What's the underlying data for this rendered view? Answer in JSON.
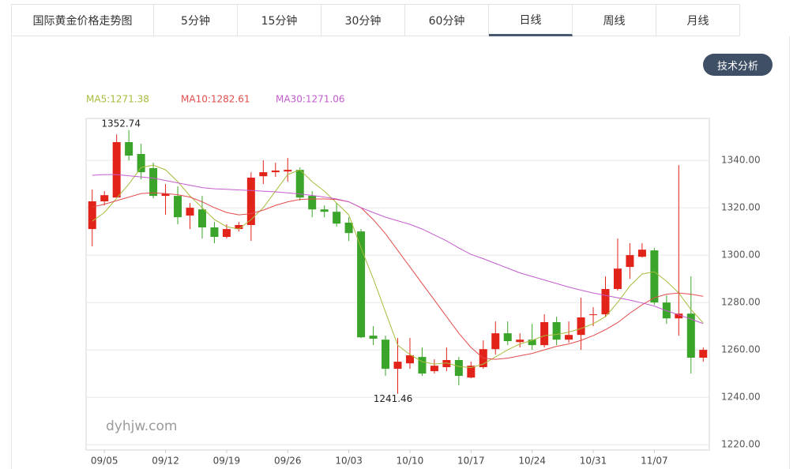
{
  "tabs": [
    "国际黄金价格走势图",
    "5分钟",
    "15分钟",
    "30分钟",
    "60分钟",
    "日线",
    "周线",
    "月线"
  ],
  "active_tab": "日线",
  "button": "技术分析",
  "watermark": "dyhjw.com",
  "chart_data": {
    "type": "candlestick",
    "categories": [
      null,
      "09/05",
      null,
      null,
      null,
      null,
      "09/12",
      null,
      null,
      null,
      null,
      "09/19",
      null,
      null,
      null,
      null,
      "09/26",
      null,
      null,
      null,
      null,
      "10/03",
      null,
      null,
      null,
      null,
      "10/10",
      null,
      null,
      null,
      null,
      "10/17",
      null,
      null,
      null,
      null,
      "10/24",
      null,
      null,
      null,
      null,
      "10/31",
      null,
      null,
      null,
      null,
      "11/07",
      null,
      null,
      null,
      null
    ],
    "open": [
      1311,
      1322.7,
      1324.3,
      1347.7,
      1342.7,
      1336.7,
      1325,
      1325,
      1316.7,
      1319.3,
      1311.7,
      1307.7,
      1311,
      1312.7,
      1333.3,
      1335,
      1335.3,
      1336,
      1325,
      1319.3,
      1318.3,
      1313.7,
      1310,
      1266,
      1264.3,
      1252,
      1254.3,
      1257,
      1251,
      1252.7,
      1255.7,
      1248.3,
      1252.7,
      1260.3,
      1267,
      1263.3,
      1264.3,
      1262,
      1271.7,
      1264.3,
      1266.3,
      1274.7,
      1275,
      1285.7,
      1295,
      1299.3,
      1302,
      1280,
      1273.3,
      1275.3,
      1256.7
    ],
    "high": [
      1327.7,
      1327,
      1351,
      1352.74,
      1347,
      1339,
      1330,
      1329,
      1322,
      1325,
      1314,
      1313,
      1314,
      1335,
      1340,
      1339,
      1341,
      1337,
      1327,
      1321,
      1322,
      1316,
      1311,
      1270,
      1266,
      1265,
      1265,
      1261,
      1256,
      1261,
      1257,
      1255,
      1264,
      1272,
      1272,
      1267,
      1271,
      1275,
      1274,
      1272,
      1282,
      1278,
      1291,
      1307,
      1305,
      1305,
      1303,
      1283,
      1338,
      1291,
      1261
    ],
    "low": [
      1303.7,
      1321,
      1325,
      1340,
      1332,
      1324,
      1317,
      1313,
      1311,
      1307,
      1305,
      1307,
      1310,
      1306,
      1330,
      1333,
      1331,
      1323,
      1316,
      1316,
      1312,
      1306,
      1265,
      1262,
      1249,
      1241.46,
      1252,
      1249,
      1250,
      1251,
      1245,
      1248,
      1252,
      1258,
      1262,
      1261,
      1260,
      1261,
      1262,
      1263,
      1260,
      1270,
      1274,
      1285,
      1290,
      1299,
      1279,
      1271,
      1266,
      1250,
      1255
    ],
    "close": [
      1322.7,
      1325.3,
      1347.7,
      1342,
      1335,
      1325,
      1326,
      1316,
      1320,
      1311.7,
      1307.7,
      1311,
      1312.7,
      1332.7,
      1335,
      1335.7,
      1336,
      1324.3,
      1319.3,
      1318.3,
      1313.3,
      1309.3,
      1265.3,
      1264.7,
      1252,
      1255,
      1257.7,
      1250,
      1253.3,
      1255.7,
      1249,
      1253.3,
      1260.3,
      1267,
      1263.7,
      1264.3,
      1262,
      1271.7,
      1264.3,
      1266.3,
      1273.7,
      1275,
      1285.7,
      1294.3,
      1300,
      1302.3,
      1280,
      1273.3,
      1275.3,
      1256.7,
      1260
    ],
    "up_color": "#e2231a",
    "down_color": "#3aa52a",
    "high_label": {
      "text": "1352.74",
      "value": 1352.74
    },
    "low_label": {
      "text": "1241.46",
      "value": 1241.46
    },
    "series": [
      {
        "name": "MA5:1271.38",
        "color": "#a9bb3c",
        "values": [
          1314.3,
          1318,
          1324,
          1330,
          1337,
          1338,
          1336,
          1331,
          1325,
          1320,
          1315,
          1312,
          1311,
          1315,
          1320,
          1327,
          1334,
          1336,
          1331,
          1327,
          1322,
          1317,
          1303,
          1290,
          1276,
          1262,
          1258,
          1255,
          1254,
          1254.5,
          1253,
          1252.5,
          1254,
          1257,
          1260,
          1262.5,
          1264,
          1266,
          1266.5,
          1267.5,
          1269,
          1271,
          1274,
          1280,
          1287,
          1292,
          1293,
          1289,
          1284,
          1277,
          1271.38
        ]
      },
      {
        "name": "MA10:1282.61",
        "color": "#e34c4c",
        "values": [
          1320.3,
          1321.5,
          1323,
          1324.5,
          1326,
          1326.3,
          1326,
          1325.5,
          1324.5,
          1322.5,
          1320,
          1318,
          1317,
          1317.5,
          1319,
          1321,
          1322.5,
          1323.5,
          1323.7,
          1323.7,
          1323.5,
          1322.5,
          1320,
          1315,
          1309,
          1302,
          1295,
          1288,
          1281,
          1274,
          1267,
          1261,
          1256.5,
          1256,
          1256.5,
          1257.5,
          1258.5,
          1260,
          1261.5,
          1262.5,
          1264,
          1266,
          1268.5,
          1271.5,
          1275.5,
          1279,
          1282,
          1283.5,
          1284,
          1283.5,
          1282.61
        ]
      },
      {
        "name": "MA30:1271.06",
        "color": "#c45cce",
        "values": [
          1333.7,
          1334,
          1334,
          1333.5,
          1333,
          1332.5,
          1331.5,
          1330.5,
          1329.5,
          1328.5,
          1328,
          1327.8,
          1327.5,
          1327.3,
          1327,
          1326.7,
          1326.3,
          1325.8,
          1325.2,
          1324.5,
          1323.7,
          1322.5,
          1320,
          1318,
          1316,
          1314.5,
          1313,
          1311,
          1308.5,
          1306,
          1303,
          1300.3,
          1298.5,
          1296.5,
          1294.5,
          1292.5,
          1291,
          1289.5,
          1288,
          1286.5,
          1285.2,
          1284,
          1283,
          1282,
          1281,
          1279.8,
          1278.5,
          1276.5,
          1274.8,
          1273,
          1271.06
        ]
      }
    ],
    "ylim": [
      1217.7,
      1357.7
    ],
    "yticks": [
      {
        "value": 1220,
        "label": "1220.00"
      },
      {
        "value": 1240,
        "label": "1240.00"
      },
      {
        "value": 1260,
        "label": "1260.00"
      },
      {
        "value": 1280,
        "label": "1280.00"
      },
      {
        "value": 1300,
        "label": "1300.00"
      },
      {
        "value": 1320,
        "label": "1320.00"
      },
      {
        "value": 1340,
        "label": "1340.00"
      }
    ],
    "grid": true
  }
}
